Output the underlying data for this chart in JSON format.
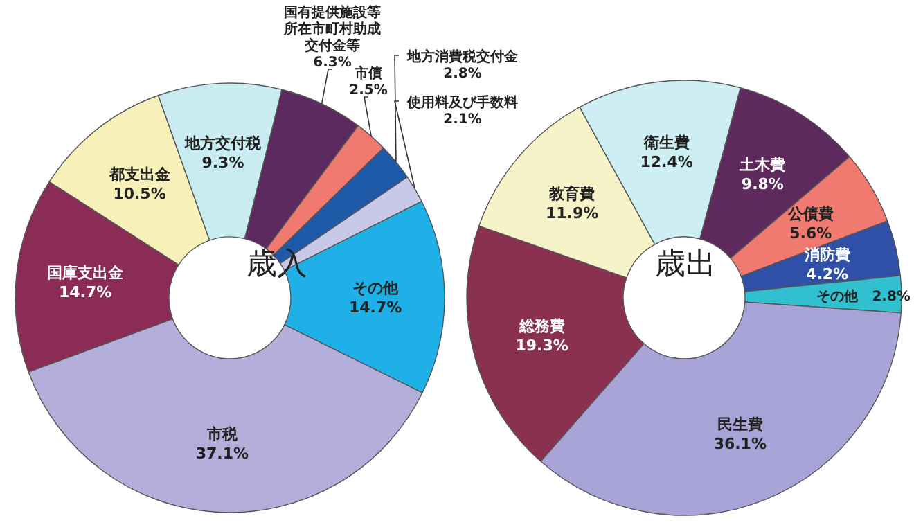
{
  "chart_data": [
    {
      "type": "donut",
      "title": "歳入",
      "categories": [
        "国有提供施設等所在市町村助成交付金等",
        "市債",
        "地方消費税交付金",
        "使用料及び手数料",
        "その他",
        "市税",
        "国庫支出金",
        "都支出金",
        "地方交付税"
      ],
      "values": [
        6.3,
        2.5,
        2.8,
        2.1,
        14.7,
        37.1,
        14.7,
        10.5,
        9.3
      ],
      "value_labels": [
        "6.3%",
        "2.5%",
        "2.8%",
        "2.1%",
        "14.7%",
        "37.1%",
        "14.7%",
        "10.5%",
        "9.3%"
      ],
      "colors": [
        "#5c2a5e",
        "#f07a70",
        "#1f5aa8",
        "#c8c8e8",
        "#1fb0e8",
        "#b4aedb",
        "#8a2c55",
        "#f7f0b8",
        "#c8ecf2"
      ]
    },
    {
      "type": "donut",
      "title": "歳出",
      "categories": [
        "土木費",
        "公債費",
        "消防費",
        "その他",
        "民生費",
        "総務費",
        "教育費",
        "衛生費"
      ],
      "values": [
        9.8,
        5.6,
        4.2,
        2.8,
        36.1,
        19.3,
        11.9,
        12.4
      ],
      "value_labels": [
        "9.8%",
        "5.6%",
        "4.2%",
        "2.8%",
        "36.1%",
        "19.3%",
        "11.9%",
        "12.4%"
      ],
      "colors": [
        "#5e2a5e",
        "#f07a70",
        "#3050a8",
        "#30c0d0",
        "#a8a4d8",
        "#8a3050",
        "#f7f3c8",
        "#cdeef2"
      ]
    }
  ]
}
